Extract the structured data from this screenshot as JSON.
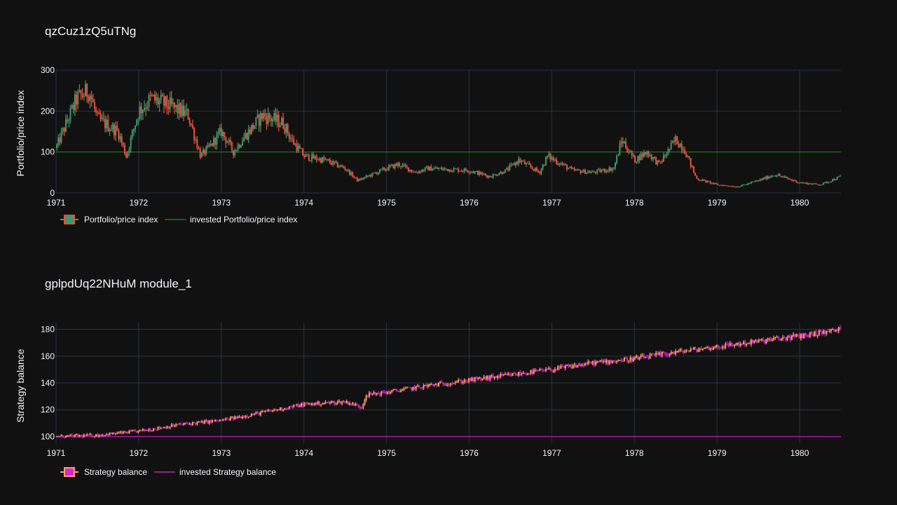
{
  "chart_data": [
    {
      "type": "candlestick",
      "title": "qzCuz1zQ5uTNg",
      "ylabel": "Portfolio/price index",
      "xlim": [
        1971,
        1980.5
      ],
      "ylim": [
        0,
        300
      ],
      "x_ticks": [
        "1971",
        "1972",
        "1973",
        "1974",
        "1975",
        "1976",
        "1977",
        "1978",
        "1979",
        "1980"
      ],
      "y_ticks": [
        "0",
        "100",
        "200",
        "300"
      ],
      "grid": true,
      "legend_position": "bottom-left",
      "legend": [
        "Portfolio/price index",
        "invested Portfolio/price index"
      ],
      "colors": {
        "increasing": "#3d9970",
        "decreasing": "#e8513a",
        "invested": "#1a7a1a"
      },
      "invested_value": 100,
      "x": [
        1971.0,
        1971.25,
        1971.4,
        1971.5,
        1971.75,
        1971.85,
        1972.0,
        1972.15,
        1972.4,
        1972.6,
        1972.75,
        1972.85,
        1973.0,
        1973.15,
        1973.25,
        1973.5,
        1973.75,
        1973.85,
        1974.0,
        1974.25,
        1974.5,
        1974.65,
        1975.0,
        1975.15,
        1975.35,
        1975.5,
        1976.0,
        1976.25,
        1976.45,
        1976.6,
        1976.85,
        1976.95,
        1977.25,
        1977.5,
        1977.75,
        1977.85,
        1978.0,
        1978.15,
        1978.3,
        1978.5,
        1978.6,
        1978.75,
        1979.0,
        1979.25,
        1979.5,
        1979.7,
        1979.85,
        1980.0,
        1980.25,
        1980.5
      ],
      "values": [
        110,
        230,
        250,
        180,
        150,
        90,
        200,
        230,
        210,
        190,
        90,
        110,
        150,
        100,
        130,
        190,
        170,
        130,
        90,
        80,
        60,
        30,
        60,
        70,
        50,
        60,
        55,
        40,
        55,
        80,
        50,
        90,
        55,
        50,
        60,
        130,
        80,
        100,
        70,
        130,
        110,
        35,
        20,
        15,
        30,
        45,
        35,
        25,
        20,
        40
      ]
    },
    {
      "type": "candlestick",
      "title": "gplpdUq22NHuM module_1",
      "ylabel": "Strategy balance",
      "xlim": [
        1971,
        1980.5
      ],
      "ylim": [
        95,
        185
      ],
      "x_ticks": [
        "1971",
        "1972",
        "1973",
        "1974",
        "1975",
        "1976",
        "1977",
        "1978",
        "1979",
        "1980"
      ],
      "y_ticks": [
        "100",
        "120",
        "140",
        "160",
        "180"
      ],
      "grid": true,
      "legend_position": "bottom-left",
      "legend": [
        "Strategy balance",
        "invested Strategy balance"
      ],
      "colors": {
        "increasing": "#ffa15a",
        "decreasing": "#e020e0",
        "invested": "#c020c0"
      },
      "invested_value": 100,
      "x": [
        1971.0,
        1971.5,
        1972.0,
        1972.5,
        1973.0,
        1973.5,
        1974.0,
        1974.5,
        1974.7,
        1974.75,
        1975.0,
        1975.5,
        1976.0,
        1976.5,
        1977.0,
        1977.5,
        1978.0,
        1978.5,
        1979.0,
        1979.5,
        1980.0,
        1980.5
      ],
      "values": [
        100,
        101,
        104,
        109,
        112,
        118,
        124,
        126,
        122,
        131,
        133,
        138,
        142,
        146,
        150,
        155,
        158,
        163,
        167,
        171,
        175,
        180
      ]
    }
  ]
}
